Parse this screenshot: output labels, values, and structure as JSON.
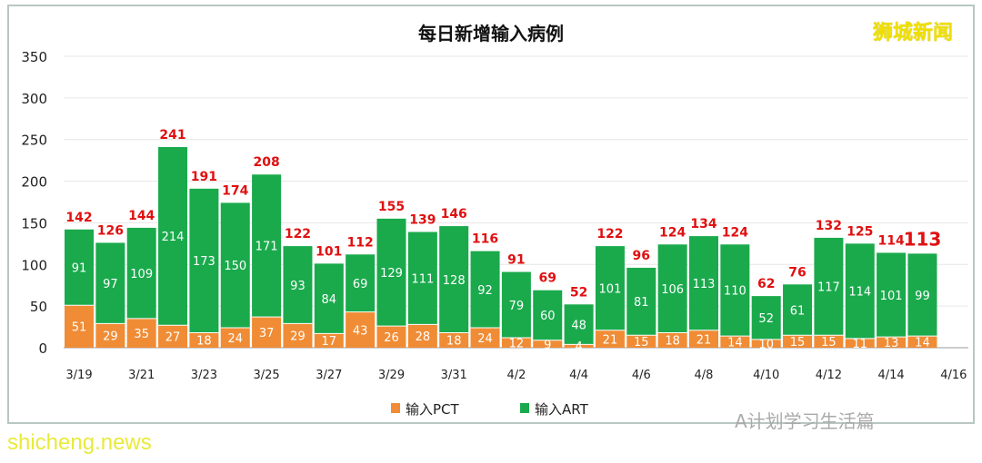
{
  "brand": "狮城新闻",
  "watermark": "shicheng.news",
  "wechat_watermark": "A计划学习生活篇",
  "colors": {
    "pct": "#f08c35",
    "art": "#1aaa4c",
    "total_label": "#e01010"
  },
  "chart_data": {
    "type": "bar",
    "stacked": true,
    "title": "每日新增输入病例",
    "ylim": [
      0,
      350
    ],
    "yticks": [
      0,
      50,
      100,
      150,
      200,
      250,
      300,
      350
    ],
    "grid": true,
    "legend_placement": "bottom",
    "categories": [
      "3/19",
      "3/20",
      "3/21",
      "3/22",
      "3/23",
      "3/24",
      "3/25",
      "3/26",
      "3/27",
      "3/28",
      "3/29",
      "3/30",
      "3/31",
      "4/1",
      "4/2",
      "4/3",
      "4/4",
      "4/5",
      "4/6",
      "4/7",
      "4/8",
      "4/9",
      "4/10",
      "4/11",
      "4/12",
      "4/13",
      "4/14",
      "4/15"
    ],
    "xtick_labels": [
      "3/19",
      "3/21",
      "3/23",
      "3/25",
      "3/27",
      "3/29",
      "3/31",
      "4/2",
      "4/4",
      "4/6",
      "4/8",
      "4/10",
      "4/12",
      "4/14",
      "4/16"
    ],
    "series": [
      {
        "name": "输入PCT",
        "values": [
          51,
          29,
          35,
          27,
          18,
          24,
          37,
          29,
          17,
          43,
          26,
          28,
          18,
          24,
          12,
          9,
          4,
          21,
          15,
          18,
          21,
          14,
          10,
          15,
          15,
          11,
          13,
          14
        ]
      },
      {
        "name": "输入ART",
        "values": [
          91,
          97,
          109,
          214,
          173,
          150,
          171,
          93,
          84,
          69,
          129,
          111,
          128,
          92,
          79,
          60,
          48,
          101,
          81,
          106,
          113,
          110,
          52,
          61,
          117,
          114,
          101,
          99
        ]
      }
    ],
    "totals": [
      142,
      126,
      144,
      241,
      191,
      174,
      208,
      122,
      101,
      112,
      155,
      139,
      146,
      116,
      91,
      69,
      52,
      122,
      96,
      124,
      134,
      124,
      62,
      76,
      132,
      125,
      114,
      113
    ]
  }
}
